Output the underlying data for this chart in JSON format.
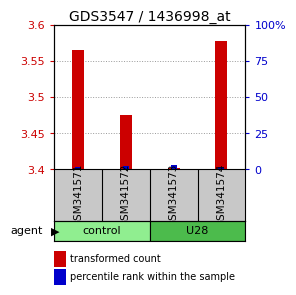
{
  "title": "GDS3547 / 1436998_at",
  "samples": [
    "GSM341571",
    "GSM341572",
    "GSM341573",
    "GSM341574"
  ],
  "red_values": [
    3.565,
    3.475,
    3.402,
    3.578
  ],
  "blue_values": [
    2.0,
    2.5,
    3.0,
    2.0
  ],
  "ylim_left": [
    3.4,
    3.6
  ],
  "ylim_right": [
    0,
    100
  ],
  "yticks_left": [
    3.4,
    3.45,
    3.5,
    3.55,
    3.6
  ],
  "yticks_right": [
    0,
    25,
    50,
    75,
    100
  ],
  "ytick_labels_right": [
    "0",
    "25",
    "50",
    "75",
    "100%"
  ],
  "groups": [
    {
      "label": "control",
      "samples": [
        0,
        1
      ],
      "color": "#90EE90"
    },
    {
      "label": "U28",
      "samples": [
        2,
        3
      ],
      "color": "#4CBB4C"
    }
  ],
  "bar_width": 0.25,
  "red_color": "#CC0000",
  "blue_color": "#0000CC",
  "left_axis_color": "#CC0000",
  "right_axis_color": "#0000CC",
  "agent_label": "agent",
  "legend_red": "transformed count",
  "legend_blue": "percentile rank within the sample",
  "bg_plot": "#FFFFFF",
  "bg_label_area": "#C8C8C8",
  "title_fontsize": 10,
  "tick_fontsize": 8,
  "label_fontsize": 7.5
}
